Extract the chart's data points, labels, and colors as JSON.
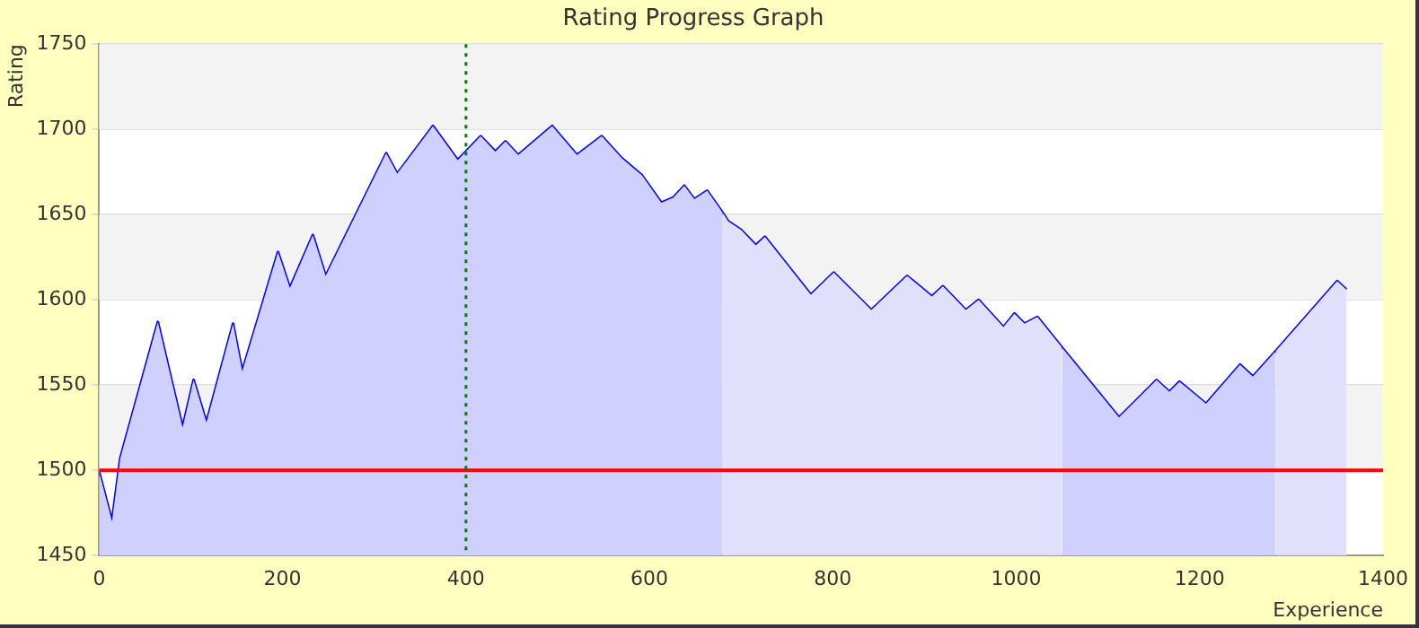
{
  "chart_data": {
    "type": "line",
    "title": "Rating Progress Graph",
    "xlabel": "Experience",
    "ylabel": "Rating",
    "series": [
      {
        "type": "area",
        "color": "#d0d0ff",
        "x": [
          0,
          14,
          23,
          64,
          91,
          103,
          117,
          146,
          156,
          195,
          208,
          233,
          247,
          313,
          325,
          364,
          391,
          416,
          432,
          443,
          457,
          494,
          521,
          548,
          570,
          592,
          613,
          626,
          638,
          649,
          663,
          680
        ],
        "values": [
          1499,
          1470,
          1507,
          1587,
          1525,
          1553,
          1528,
          1586,
          1558,
          1628,
          1607,
          1638,
          1614,
          1686,
          1674,
          1702,
          1682,
          1696,
          1687,
          1693,
          1685,
          1702,
          1685,
          1696,
          1683,
          1673,
          1657,
          1660,
          1667,
          1659,
          1664,
          1651
        ]
      },
      {
        "type": "area",
        "color": "#e0e0fc",
        "x": [
          680,
          686,
          700,
          716,
          726,
          776,
          801,
          842,
          881,
          908,
          920,
          945,
          959,
          986,
          998,
          1009,
          1023,
          1050
        ],
        "values": [
          1651,
          1646,
          1641,
          1632,
          1637,
          1603,
          1616,
          1594,
          1614,
          1602,
          1608,
          1594,
          1600,
          1584,
          1592,
          1586,
          1590,
          1572
        ]
      },
      {
        "type": "area",
        "color": "#d0d0ff",
        "x": [
          1050,
          1112,
          1153,
          1167,
          1178,
          1207,
          1244,
          1258,
          1283
        ],
        "values": [
          1572,
          1531,
          1553,
          1546,
          1552,
          1539,
          1562,
          1555,
          1570
        ]
      },
      {
        "type": "area",
        "color": "#e0e0fc",
        "x": [
          1283,
          1350,
          1360
        ],
        "values": [
          1570,
          1611,
          1606
        ]
      },
      {
        "color": "#0000ff",
        "x": [
          0,
          14,
          23,
          64,
          91,
          103,
          117,
          146,
          156,
          195,
          208,
          233,
          247,
          313,
          325,
          364,
          391,
          416,
          432,
          443,
          457,
          494,
          521,
          548,
          570,
          592,
          613,
          626,
          638,
          649,
          663,
          680,
          686,
          700,
          716,
          726,
          776,
          801,
          842,
          881,
          908,
          920,
          945,
          959,
          986,
          998,
          1009,
          1023,
          1050,
          1112,
          1153,
          1167,
          1178,
          1207,
          1244,
          1258,
          1283,
          1350,
          1360
        ],
        "values": [
          1499,
          1470,
          1507,
          1587,
          1525,
          1553,
          1528,
          1586,
          1558,
          1628,
          1607,
          1638,
          1614,
          1686,
          1674,
          1702,
          1682,
          1696,
          1687,
          1693,
          1685,
          1702,
          1685,
          1696,
          1683,
          1673,
          1657,
          1660,
          1667,
          1659,
          1664,
          1651,
          1646,
          1641,
          1632,
          1637,
          1603,
          1616,
          1594,
          1614,
          1602,
          1608,
          1594,
          1600,
          1584,
          1592,
          1586,
          1590,
          1572,
          1531,
          1553,
          1546,
          1552,
          1539,
          1562,
          1555,
          1570,
          1611,
          1606
        ]
      }
    ],
    "xlim": [
      0,
      1400
    ],
    "xticks": [
      0,
      200,
      400,
      600,
      800,
      1000,
      1200,
      1400
    ],
    "ylim": [
      1450,
      1750
    ],
    "yticks": [
      1450,
      1500,
      1550,
      1600,
      1650,
      1700,
      1750
    ],
    "grid": "y",
    "legend": false,
    "marker": "none",
    "line_style": "solid",
    "ref_lines": [
      {
        "axis": "y",
        "value": 1500,
        "color": "#ff0000",
        "line_style": "solid"
      },
      {
        "axis": "x",
        "value": 400,
        "color": "#008000",
        "line_style": "dotted"
      }
    ]
  }
}
